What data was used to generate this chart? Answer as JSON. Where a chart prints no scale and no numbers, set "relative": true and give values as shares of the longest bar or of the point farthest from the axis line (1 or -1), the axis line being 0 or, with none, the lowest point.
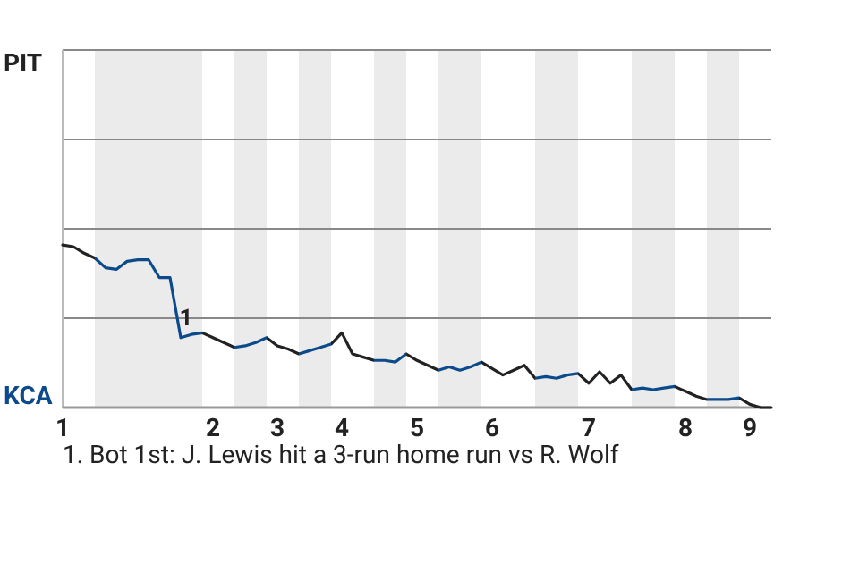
{
  "chart_data": {
    "type": "line",
    "relative": true,
    "marker": "none",
    "line_style": "solid",
    "ref_lines": [
      {
        "axis": "y",
        "value": 0.55,
        "color": "#888888"
      },
      {
        "axis": "y",
        "value": 1.1,
        "color": "#888888"
      },
      {
        "axis": "y",
        "value": 1.65,
        "color": "#888888"
      },
      {
        "axis": "y",
        "value": 2.2,
        "color": "#888888"
      }
    ],
    "categories": [
      "1",
      null,
      null,
      null,
      null,
      null,
      null,
      null,
      null,
      null,
      null,
      null,
      null,
      null,
      "2",
      null,
      null,
      null,
      null,
      null,
      "3",
      null,
      null,
      null,
      null,
      null,
      "4",
      null,
      null,
      null,
      null,
      null,
      null,
      "5",
      null,
      null,
      null,
      null,
      null,
      null,
      "6",
      null,
      null,
      null,
      null,
      null,
      null,
      null,
      null,
      "7",
      null,
      null,
      null,
      null,
      null,
      null,
      null,
      null,
      "8",
      null,
      null,
      null,
      null,
      null,
      "9",
      null,
      null
    ],
    "series": [
      {
        "color": "#222222",
        "values": [
          1.0,
          0.99,
          0.95,
          0.92,
          0.86,
          0.85,
          0.9,
          0.91,
          0.91,
          0.8,
          0.8,
          0.43,
          0.45,
          0.46,
          0.43,
          0.4,
          0.37,
          0.38,
          0.4,
          0.43,
          0.38,
          0.36,
          0.33,
          0.35,
          0.37,
          0.39,
          0.46,
          0.33,
          0.31,
          0.29,
          0.29,
          0.28,
          0.33,
          0.29,
          0.26,
          0.23,
          0.25,
          0.23,
          0.25,
          0.28,
          0.24,
          0.2,
          0.23,
          0.26,
          0.18,
          0.19,
          0.18,
          0.2,
          0.21,
          0.15,
          0.22,
          0.15,
          0.2,
          0.11,
          0.12,
          0.11,
          0.12,
          0.13,
          0.1,
          0.07,
          0.05,
          0.05,
          0.05,
          0.06,
          0.02,
          0,
          0
        ],
        "colors": [
          "#222222",
          "#222222",
          "#222222",
          "#0b4a8b",
          "#0b4a8b",
          "#0b4a8b",
          "#0b4a8b",
          "#0b4a8b",
          "#0b4a8b",
          "#0b4a8b",
          "#0b4a8b",
          "#0b4a8b",
          "#0b4a8b",
          "#0b4a8b",
          "#222222",
          "#222222",
          "#0b4a8b",
          "#0b4a8b",
          "#0b4a8b",
          "#0b4a8b",
          "#222222",
          "#222222",
          "#0b4a8b",
          "#0b4a8b",
          "#0b4a8b",
          "#0b4a8b",
          "#222222",
          "#222222",
          "#222222",
          "#0b4a8b",
          "#0b4a8b",
          "#0b4a8b",
          "#0b4a8b",
          "#222222",
          "#222222",
          "#0b4a8b",
          "#0b4a8b",
          "#0b4a8b",
          "#0b4a8b",
          "#0b4a8b",
          "#222222",
          "#222222",
          "#222222",
          "#222222",
          "#0b4a8b",
          "#0b4a8b",
          "#0b4a8b",
          "#0b4a8b",
          "#0b4a8b",
          "#222222",
          "#222222",
          "#222222",
          "#222222",
          "#0b4a8b",
          "#0b4a8b",
          "#0b4a8b",
          "#0b4a8b",
          "#0b4a8b",
          "#222222",
          "#222222",
          "#0b4a8b",
          "#0b4a8b",
          "#0b4a8b",
          "#0b4a8b",
          "#222222",
          "#222222",
          "#222222"
        ]
      }
    ],
    "annotations": [
      "PIT",
      "KCA",
      {
        "text": "1",
        "y": 0.43
      },
      "1. Bot 1st: J. Lewis hit a 3-run home run vs R. Wolf"
    ]
  }
}
